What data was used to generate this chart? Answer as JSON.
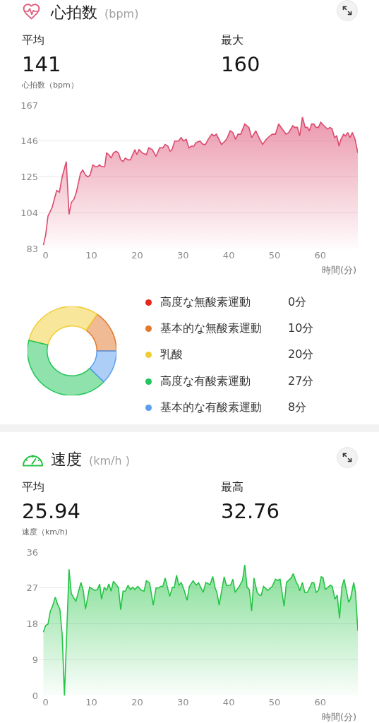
{
  "chart_data": [
    {
      "type": "area",
      "title": "心拍数",
      "subtitle": "(bpm)",
      "ylabel": "心拍数（bpm）",
      "xlabel": "時間(分)",
      "annotations": [
        "平均",
        "141",
        "最大",
        "160"
      ],
      "x": [
        -0.5,
        0,
        0.5,
        1.4,
        2.4,
        3.0,
        3.6,
        4.5,
        5.1,
        5.6,
        6.2,
        6.7,
        7.6,
        8.1,
        8.7,
        9.2,
        9.7,
        10.3,
        10.8,
        11.3,
        11.8,
        12.2,
        12.9,
        13.3,
        13.8,
        14.3,
        14.8,
        15.4,
        15.9,
        16.4,
        16.9,
        17.4,
        18.0,
        18.5,
        19.0,
        19.5,
        19.9,
        20.4,
        21.1,
        22.0,
        22.5,
        23.3,
        24.1,
        24.9,
        25.6,
        26.1,
        26.7,
        27.2,
        27.6,
        28.2,
        29.0,
        29.6,
        30.1,
        30.7,
        31.3,
        31.8,
        32.4,
        32.8,
        33.7,
        34.4,
        34.9,
        35.5,
        36.3,
        36.8,
        37.3,
        38.4,
        39.2,
        39.7,
        40.3,
        40.9,
        41.5,
        42.0,
        42.6,
        43.5,
        44.4,
        45.0,
        45.9,
        46.6,
        47.4,
        48.2,
        49.0,
        49.5,
        50.2,
        50.9,
        51.7,
        52.5,
        53.1,
        54.0,
        54.4,
        55.0,
        55.5,
        56.1,
        56.7,
        57.2,
        57.6,
        58.1,
        58.6,
        59.1,
        59.6,
        60.1,
        60.8,
        61.6,
        62.1,
        62.6,
        63.1,
        63.6,
        64.1,
        64.5,
        65.1,
        65.5,
        66.0,
        66.5,
        67.0,
        67.6,
        68.2
      ],
      "values": [
        85,
        91,
        102,
        107,
        117,
        116,
        125,
        134,
        103,
        110,
        112,
        116,
        127,
        129,
        126,
        125,
        126,
        132,
        131,
        131,
        132,
        131,
        131,
        139,
        138,
        136,
        139,
        140,
        139,
        135,
        134,
        136,
        135,
        135,
        138,
        141,
        138,
        141,
        139,
        138,
        142,
        141,
        137,
        142,
        142,
        144,
        143,
        140,
        141,
        146,
        146,
        148,
        146,
        147,
        142,
        143,
        143,
        145,
        146,
        144,
        144,
        147,
        150,
        149,
        150,
        144,
        146,
        148,
        152,
        151,
        147,
        150,
        150,
        156,
        154,
        148,
        152,
        148,
        144,
        147,
        149,
        150,
        150,
        156,
        153,
        150,
        151,
        155,
        154,
        154,
        149,
        160,
        154,
        154,
        152,
        156,
        156,
        154,
        154,
        157,
        155,
        153,
        154,
        153,
        148,
        149,
        143,
        147,
        150,
        149,
        151,
        148,
        151,
        147,
        139
      ],
      "color": "#dc4a6e",
      "xlim": [
        -1.5,
        68.2
      ],
      "xticks": [
        0,
        10,
        20,
        30,
        40,
        50,
        60
      ],
      "ylim": [
        83,
        167
      ],
      "yticks": [
        83,
        104,
        125,
        146,
        167
      ],
      "grid": "y"
    },
    {
      "type": "donut",
      "categories": [
        "高度な無酸素運動",
        "基本的な無酸素運動",
        "乳酸",
        "高度な有酸素運動",
        "基本的な有酸素運動"
      ],
      "values": [
        0,
        10,
        20,
        27,
        8
      ],
      "value_labels": [
        "0分",
        "10分",
        "20分",
        "27分",
        "8分"
      ],
      "colors": [
        "#e8271c",
        "#e2782a",
        "#f1cd35",
        "#22c65a",
        "#5b9ff0"
      ],
      "legend": "right"
    },
    {
      "type": "area",
      "title": "速度",
      "subtitle": "(km/h )",
      "ylabel": "速度（km/h)",
      "xlabel": "時間(分)",
      "annotations": [
        "平均",
        "25.94",
        "最高",
        "32.76"
      ],
      "x": [
        -0.5,
        0,
        0.5,
        1.0,
        1.5,
        2.1,
        2.6,
        3.1,
        3.6,
        4.1,
        5.1,
        5.6,
        6.6,
        7.7,
        8.2,
        8.7,
        9.6,
        10.7,
        11.3,
        11.8,
        12.2,
        12.8,
        13.3,
        13.8,
        14.3,
        14.8,
        15.9,
        16.4,
        16.9,
        17.4,
        18.0,
        18.5,
        19.0,
        19.5,
        20.1,
        20.9,
        21.5,
        22.0,
        22.7,
        23.5,
        24.1,
        24.7,
        25.1,
        25.6,
        26.1,
        27.1,
        27.7,
        28.1,
        28.6,
        29.1,
        29.6,
        30.2,
        30.9,
        31.4,
        32.2,
        32.9,
        33.4,
        34.4,
        35.0,
        35.9,
        36.5,
        37.0,
        37.4,
        37.9,
        39.0,
        39.5,
        40.4,
        40.9,
        41.4,
        42.3,
        43.0,
        43.5,
        44.0,
        44.5,
        45.0,
        45.5,
        46.2,
        46.7,
        47.1,
        47.6,
        48.5,
        49.5,
        50.2,
        50.7,
        51.2,
        52.1,
        52.6,
        53.6,
        54.1,
        54.8,
        55.1,
        55.5,
        56.1,
        56.6,
        57.2,
        58.2,
        58.6,
        59.1,
        59.6,
        60.2,
        60.6,
        61.1,
        62.2,
        62.6,
        63.2,
        63.7,
        64.2,
        64.7,
        65.2,
        66.2,
        66.6,
        67.3,
        67.7,
        68.2
      ],
      "values": [
        15.9,
        17.6,
        17.9,
        21.1,
        22.4,
        24.7,
        22.9,
        21.7,
        15.3,
        0,
        31.7,
        25.6,
        23.6,
        28.4,
        26.5,
        21.7,
        27.2,
        26.4,
        26.6,
        28.0,
        24.2,
        27.2,
        26.4,
        28.0,
        26.2,
        28.7,
        27.1,
        21.5,
        26.2,
        26.2,
        27.7,
        26.6,
        27.2,
        26.6,
        27.4,
        26.4,
        26.2,
        28.8,
        28.3,
        22.7,
        27.0,
        27.0,
        27.4,
        27.4,
        29.5,
        24.9,
        27.2,
        27.1,
        30.2,
        27.6,
        28.4,
        26.6,
        23.9,
        27.4,
        28.8,
        27.7,
        28.3,
        25.9,
        28.4,
        27.8,
        29.9,
        27.1,
        25.9,
        22.7,
        29.8,
        27.6,
        27.7,
        29.2,
        25.9,
        27.4,
        28.9,
        32.8,
        27.2,
        26.6,
        21.2,
        29.5,
        25.9,
        25.2,
        25.2,
        27.4,
        26.4,
        27.4,
        29.2,
        28.9,
        29.2,
        22.4,
        28.4,
        29.5,
        30.6,
        28.3,
        27.8,
        26.3,
        28.4,
        25.9,
        25.9,
        28.4,
        28.3,
        25.9,
        26.4,
        29.8,
        29.6,
        26.6,
        27.7,
        27.4,
        24.2,
        25.2,
        19.4,
        27.1,
        29.2,
        23.4,
        24.3,
        28.4,
        25.9,
        16.2
      ],
      "color": "#25c445",
      "xlim": [
        -1.5,
        68.2
      ],
      "xticks": [
        0,
        10,
        20,
        30,
        40,
        50,
        60
      ],
      "ylim": [
        0,
        36
      ],
      "yticks": [
        0,
        9,
        18,
        27,
        36
      ],
      "grid": "y"
    }
  ]
}
